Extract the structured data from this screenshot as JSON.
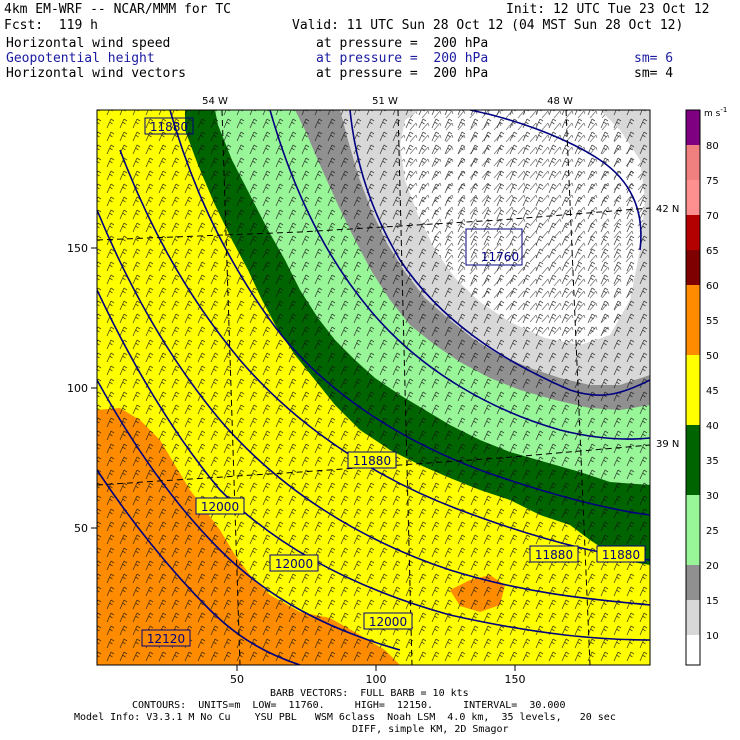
{
  "header": {
    "model": "4km EM-WRF -- NCAR/MMM for TC",
    "init": "Init: 12 UTC Tue 23 Oct 12",
    "fcst": "Fcst:  119 h",
    "valid": "Valid: 11 UTC Sun 28 Oct 12 (04 MST Sun 28 Oct 12)",
    "fields": [
      {
        "name": "Horizontal wind speed",
        "level": "at pressure =  200 hPa",
        "sm": ""
      },
      {
        "name": "Geopotential height",
        "level": "at pressure =  200 hPa",
        "sm": "sm= 6"
      },
      {
        "name": "Horizontal wind vectors",
        "level": "at pressure =  200 hPa",
        "sm": "sm= 4"
      }
    ]
  },
  "map": {
    "lon_labels": [
      "54 W",
      "51 W",
      "48 W"
    ],
    "lat_labels": [
      "42 N",
      "39 N"
    ],
    "x_ticks": [
      "50",
      "100",
      "150"
    ],
    "y_ticks": [
      "150",
      "100",
      "50"
    ],
    "contour_labels": [
      "11880",
      "11760",
      "11880",
      "12000",
      "12000",
      "12000",
      "11880",
      "11880",
      "12120"
    ]
  },
  "colorbar": {
    "unit": "m s",
    "unit_exp": "-1",
    "labels": [
      "80",
      "75",
      "70",
      "65",
      "60",
      "55",
      "50",
      "45",
      "40",
      "35",
      "30",
      "25",
      "20",
      "15",
      "10"
    ],
    "colors": [
      "#7f0080",
      "#f08080",
      "#ff9090",
      "#b30000",
      "#7f0000",
      "#8b1a00",
      "#ff8c00",
      "#ff8c00",
      "#ffff00",
      "#ffff00",
      "#006400",
      "#006400",
      "#98f598",
      "#909090",
      "#d8d8d8",
      "#ffffff"
    ]
  },
  "footer": {
    "barb": "BARB VECTORS:  FULL BARB = 10 kts",
    "contours": "CONTOURS:  UNITS=m  LOW=  11760.     HIGH=  12150.     INTERVAL=  30.000",
    "model_info": "Model Info: V3.3.1 M No Cu    YSU PBL   WSM 6class  Noah LSM  4.0 km,  35 levels,   20 sec",
    "diff": "DIFF, simple KM, 2D Smagor"
  }
}
